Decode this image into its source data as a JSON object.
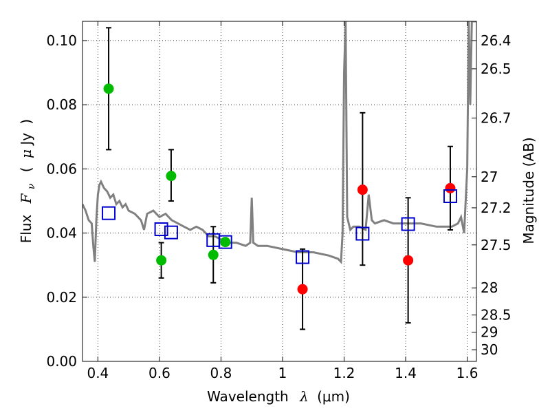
{
  "chart_data": {
    "type": "scatter",
    "xlabel_text": "Wavelength",
    "xlabel_symbol": "λ",
    "xlabel_unit": "(μm)",
    "ylabel_text": "Flux",
    "ylabel_symbol": "F",
    "ylabel_sub": "ν",
    "ylabel_unit_open": "(",
    "ylabel_unit_mu": "μ",
    "ylabel_unit_rest": "Jy",
    "ylabel_unit_close": ")",
    "y2label": "Magnitude (AB)",
    "xlim": [
      0.35,
      1.63
    ],
    "ylim": [
      0.0,
      0.106
    ],
    "x_ticks": [
      0.4,
      0.6,
      0.8,
      1.0,
      1.2,
      1.4,
      1.6
    ],
    "x_tick_labels": [
      "0.4",
      "0.6",
      "0.8",
      "1",
      "1.2",
      "1.4",
      "1.6"
    ],
    "y_ticks": [
      0.0,
      0.02,
      0.04,
      0.06,
      0.08,
      0.1
    ],
    "y_tick_labels": [
      "0.00",
      "0.02",
      "0.04",
      "0.06",
      "0.08",
      "0.10"
    ],
    "mag_ticks": [
      26.4,
      26.5,
      26.7,
      27,
      27.2,
      27.5,
      28,
      28.5,
      29,
      30
    ],
    "mag_tick_labels": [
      "26.4",
      "26.5",
      "26.7",
      "27",
      "27.2",
      "27.5",
      "28",
      "28.5",
      "29",
      "30"
    ],
    "grid": true,
    "colors": {
      "green": "#00bb00",
      "red": "#ff0000",
      "model_box": "#0000cc",
      "sed": "#808080",
      "errorbar": "#000000"
    },
    "series": [
      {
        "marker": "circle-green",
        "points": [
          {
            "x": 0.435,
            "y": 0.085,
            "err_lo": 0.066,
            "err_hi": 0.104
          },
          {
            "x": 0.606,
            "y": 0.0315,
            "err_lo": 0.026,
            "err_hi": 0.037
          },
          {
            "x": 0.638,
            "y": 0.0578,
            "err_lo": 0.05,
            "err_hi": 0.066
          },
          {
            "x": 0.775,
            "y": 0.0332,
            "err_lo": 0.0245,
            "err_hi": 0.042
          },
          {
            "x": 0.814,
            "y": 0.0372,
            "err_lo": null,
            "err_hi": null
          }
        ]
      },
      {
        "marker": "circle-red",
        "points": [
          {
            "x": 1.065,
            "y": 0.0225,
            "err_lo": 0.01,
            "err_hi": 0.035
          },
          {
            "x": 1.26,
            "y": 0.0535,
            "err_lo": 0.03,
            "err_hi": 0.0775
          },
          {
            "x": 1.408,
            "y": 0.0315,
            "err_lo": 0.012,
            "err_hi": 0.051
          },
          {
            "x": 1.545,
            "y": 0.054,
            "err_lo": 0.041,
            "err_hi": 0.067
          }
        ]
      },
      {
        "marker": "square-blue-open",
        "points": [
          {
            "x": 0.435,
            "y": 0.0462
          },
          {
            "x": 0.606,
            "y": 0.0412
          },
          {
            "x": 0.638,
            "y": 0.0402
          },
          {
            "x": 0.775,
            "y": 0.0378
          },
          {
            "x": 0.814,
            "y": 0.0372
          },
          {
            "x": 1.065,
            "y": 0.0325
          },
          {
            "x": 1.26,
            "y": 0.0398
          },
          {
            "x": 1.408,
            "y": 0.0428
          },
          {
            "x": 1.545,
            "y": 0.0515
          }
        ]
      },
      {
        "marker": "line-gray",
        "x": [
          0.35,
          0.36,
          0.37,
          0.38,
          0.385,
          0.39,
          0.395,
          0.4,
          0.405,
          0.41,
          0.42,
          0.43,
          0.44,
          0.45,
          0.46,
          0.47,
          0.48,
          0.49,
          0.5,
          0.52,
          0.54,
          0.55,
          0.56,
          0.58,
          0.6,
          0.62,
          0.64,
          0.66,
          0.68,
          0.7,
          0.72,
          0.74,
          0.76,
          0.78,
          0.8,
          0.82,
          0.85,
          0.88,
          0.895,
          0.9,
          0.905,
          0.92,
          0.95,
          1.0,
          1.05,
          1.1,
          1.15,
          1.18,
          1.19,
          1.195,
          1.2,
          1.205,
          1.21,
          1.22,
          1.23,
          1.25,
          1.27,
          1.28,
          1.29,
          1.3,
          1.33,
          1.36,
          1.4,
          1.45,
          1.5,
          1.55,
          1.57,
          1.58,
          1.59,
          1.6,
          1.605,
          1.61,
          1.615,
          1.62,
          1.63
        ],
        "y": [
          0.049,
          0.047,
          0.044,
          0.043,
          0.036,
          0.031,
          0.044,
          0.052,
          0.055,
          0.056,
          0.054,
          0.053,
          0.051,
          0.052,
          0.049,
          0.05,
          0.048,
          0.049,
          0.047,
          0.046,
          0.044,
          0.041,
          0.046,
          0.047,
          0.045,
          0.046,
          0.044,
          0.043,
          0.042,
          0.041,
          0.042,
          0.041,
          0.039,
          0.039,
          0.038,
          0.037,
          0.037,
          0.036,
          0.037,
          0.051,
          0.037,
          0.036,
          0.036,
          0.035,
          0.034,
          0.034,
          0.033,
          0.032,
          0.031,
          0.04,
          0.09,
          0.106,
          0.045,
          0.041,
          0.042,
          0.042,
          0.041,
          0.052,
          0.044,
          0.043,
          0.044,
          0.043,
          0.043,
          0.043,
          0.042,
          0.042,
          0.043,
          0.045,
          0.04,
          0.06,
          0.106,
          0.08,
          0.106,
          0.106,
          0.106
        ]
      }
    ]
  }
}
